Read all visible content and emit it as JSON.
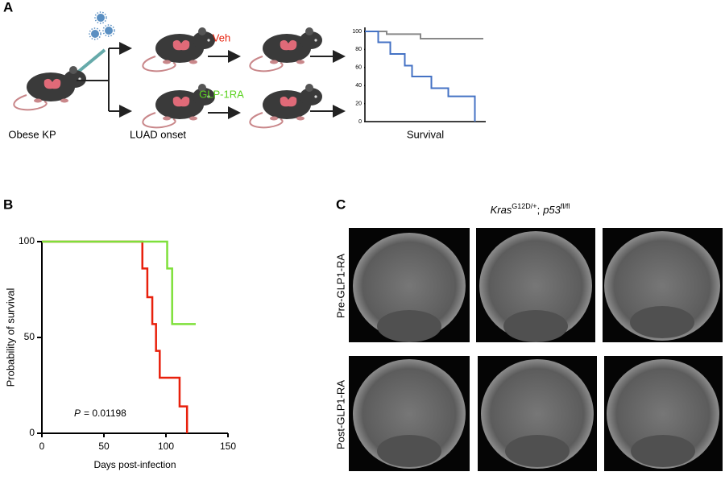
{
  "panel_a": {
    "label": "A",
    "treatments": [
      "Veh",
      "GLP-1RA"
    ],
    "stages": [
      "Obese KP",
      "LUAD onset"
    ]
  },
  "chart_data": [
    {
      "type": "step-line",
      "xlabel": "Survival",
      "xlim": [
        0,
        100
      ],
      "ylim": [
        0,
        100
      ],
      "yticks": [
        0,
        20,
        40,
        60,
        80,
        100
      ],
      "series": [
        {
          "color": "#888888",
          "x": [
            0,
            18,
            46,
            98
          ],
          "values": [
            100,
            97,
            92,
            92
          ]
        },
        {
          "color": "#4472c4",
          "x": [
            0,
            11,
            21,
            33,
            39,
            55,
            69,
            91
          ],
          "values": [
            100,
            88,
            75,
            62,
            50,
            37,
            28,
            0
          ]
        }
      ]
    },
    {
      "type": "step-line",
      "panel_label": "B",
      "ylabel": "Probability of survival",
      "xlabel": "Days post-infection",
      "xlim": [
        0,
        150
      ],
      "xticks": [
        0,
        50,
        100,
        150
      ],
      "ylim": [
        0,
        100
      ],
      "yticks": [
        0,
        50,
        100
      ],
      "annotation": {
        "symbol": "P",
        "text": "= 0.01198"
      },
      "series": [
        {
          "color": "#e8200c",
          "x": [
            0,
            81,
            85,
            89,
            92,
            95,
            111,
            117
          ],
          "values": [
            100,
            86,
            71,
            57,
            43,
            29,
            14,
            0
          ]
        },
        {
          "color": "#7ee03a",
          "x": [
            0,
            101,
            105,
            124
          ],
          "values": [
            100,
            86,
            57,
            57
          ]
        }
      ]
    }
  ],
  "panel_c": {
    "label": "C",
    "genotype": [
      {
        "gene": "Kras",
        "allele": "G12D/+"
      },
      {
        "gene": "p53",
        "allele": "fl/fl"
      }
    ],
    "separator": ";",
    "rows": [
      "Pre-GLP1-RA",
      "Post-GLP1-RA"
    ]
  }
}
